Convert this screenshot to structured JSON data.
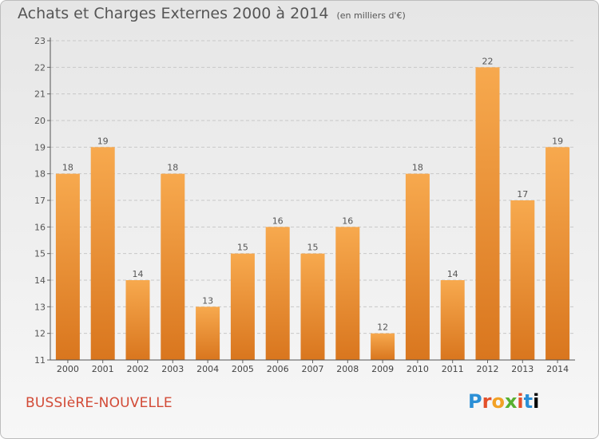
{
  "header": {
    "title": "Achats et Charges Externes 2000 à 2014",
    "unit": "(en milliers d'€)"
  },
  "footer": {
    "commune": "BUSSIèRE-NOUVELLE",
    "logo_letters": [
      "P",
      "r",
      "o",
      "x",
      "i",
      "t",
      "i"
    ]
  },
  "colors": {
    "bar_light": "#f7a94e",
    "bar_dark": "#d9761e",
    "title": "#555555",
    "commune": "#d24a36"
  },
  "chart_data": {
    "type": "bar",
    "title": "Achats et Charges Externes 2000 à 2014",
    "subtitle": "(en milliers d'€)",
    "categories": [
      "2000",
      "2001",
      "2002",
      "2003",
      "2004",
      "2005",
      "2006",
      "2007",
      "2008",
      "2009",
      "2010",
      "2011",
      "2012",
      "2013",
      "2014"
    ],
    "values": [
      18,
      19,
      14,
      18,
      13,
      15,
      16,
      15,
      16,
      12,
      18,
      14,
      22,
      17,
      19
    ],
    "ylim": [
      11,
      23
    ],
    "yticks": [
      11,
      12,
      13,
      14,
      15,
      16,
      17,
      18,
      19,
      20,
      21,
      22,
      23
    ],
    "grid": "horizontal dashed",
    "legend": "none"
  }
}
